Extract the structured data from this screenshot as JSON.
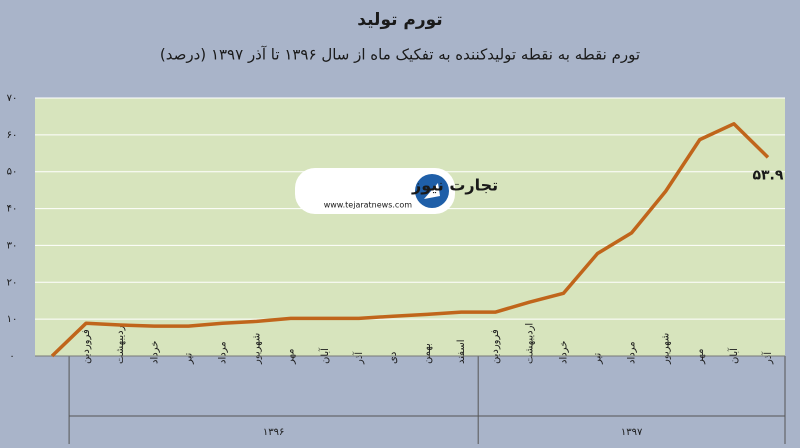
{
  "chart_data": {
    "type": "line",
    "title": "تورم تولید",
    "subtitle": "تورم نقطه به نقطه تولیدکننده به تفکیک ماه  از سال ۱۳۹۶ تا آذر ۱۳۹۷ (درصد)",
    "categories": [
      null,
      "فروردین",
      "اردیبهشت",
      "خرداد",
      "تیر",
      "مرداد",
      "شهریور",
      "مهر",
      "آبان",
      "آذر",
      "دی",
      "بهمن",
      "اسفند",
      "فروردین",
      "اردیبهشت",
      "خرداد",
      "تیر",
      "مرداد",
      "شهریور",
      "مهر",
      "آبان",
      "آذر"
    ],
    "x_groups": [
      {
        "label": "۱۳۹۶",
        "count": 12
      },
      {
        "label": "۱۳۹۷",
        "count": 9
      }
    ],
    "values": [
      0,
      8.9,
      8.4,
      8.1,
      8.1,
      8.9,
      9.4,
      10.2,
      10.2,
      10.2,
      10.8,
      11.3,
      11.9,
      11.9,
      14.6,
      17,
      27.8,
      33.4,
      44.7,
      58.7,
      63,
      53.9
    ],
    "value_labels": [
      null,
      null,
      null,
      null,
      null,
      null,
      null,
      null,
      null,
      null,
      null,
      null,
      null,
      null,
      null,
      null,
      null,
      null,
      null,
      null,
      null,
      "۵۳.۹"
    ],
    "color": "#c0651b",
    "ylim": [
      0,
      70
    ],
    "yticks": [
      {
        "value": 0,
        "label": "۰"
      },
      {
        "value": 10,
        "label": "۱۰"
      },
      {
        "value": 20,
        "label": "۲۰"
      },
      {
        "value": 30,
        "label": "۳۰"
      },
      {
        "value": 40,
        "label": "۴۰"
      },
      {
        "value": 50,
        "label": "۵۰"
      },
      {
        "value": 60,
        "label": "۶۰"
      },
      {
        "value": 70,
        "label": "۷۰"
      }
    ],
    "grid": true
  },
  "logo": {
    "name": "تجارت نیوز",
    "url": "www.tejaratnews.com"
  }
}
